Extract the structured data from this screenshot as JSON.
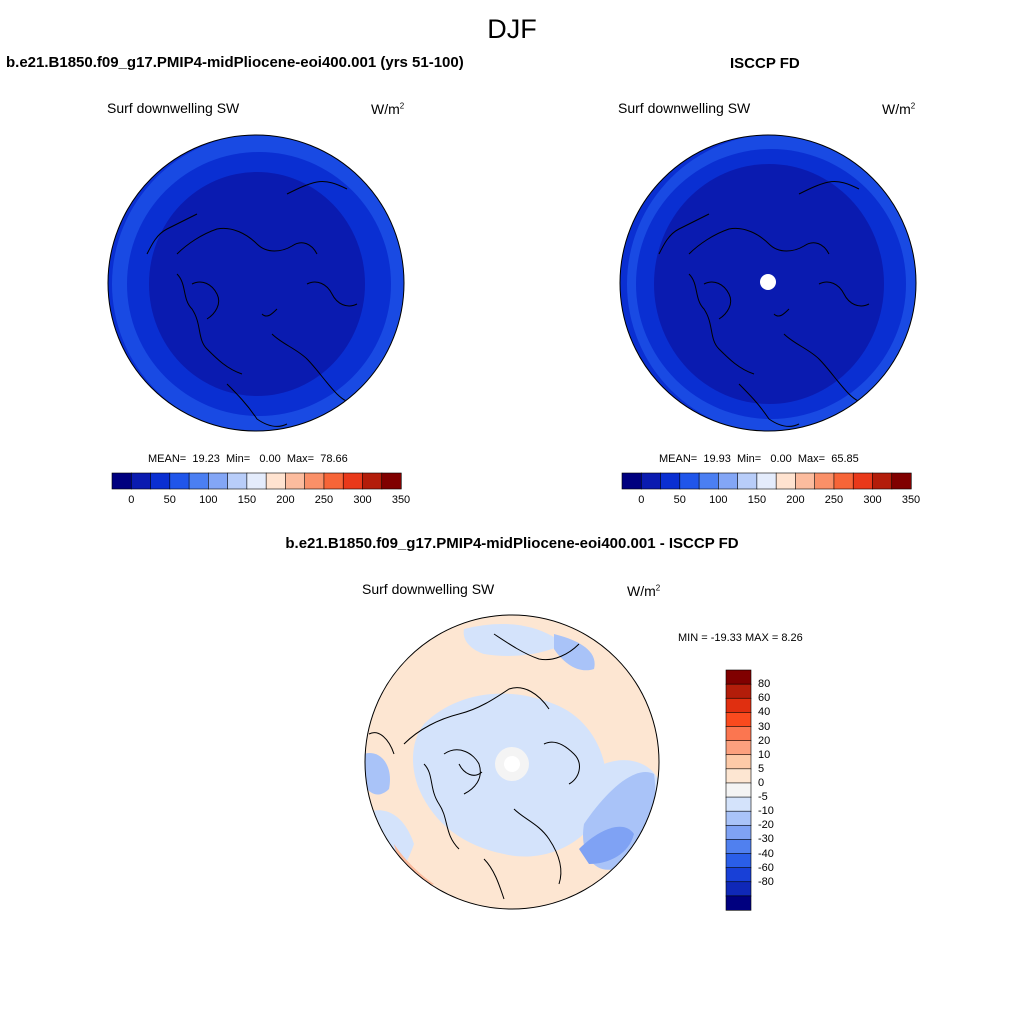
{
  "season": "DJF",
  "panels": [
    {
      "title": "b.e21.B1850.f09_g17.PMIP4-midPliocene-eoi400.001 (yrs 51-100)",
      "variable": "Surf downwelling SW",
      "units_base": "W/m",
      "units_exp": "2",
      "stats": {
        "mean_label": "MEAN=",
        "mean": "19.23",
        "min_label": "Min=",
        "min": "0.00",
        "max_label": "Max=",
        "max": "78.66"
      }
    },
    {
      "title": "ISCCP FD",
      "variable": "Surf downwelling SW",
      "units_base": "W/m",
      "units_exp": "2",
      "stats": {
        "mean_label": "MEAN=",
        "mean": "19.93",
        "min_label": "Min=",
        "min": "0.00",
        "max_label": "Max=",
        "max": "65.85"
      }
    },
    {
      "title": "b.e21.B1850.f09_g17.PMIP4-midPliocene-eoi400.001 - ISCCP FD",
      "variable": "Surf downwelling SW",
      "units_base": "W/m",
      "units_exp": "2",
      "minmax_text": "MIN = -19.33 MAX =   8.26"
    }
  ],
  "colorbar_top": {
    "colors": [
      "#00007f",
      "#0a1bb0",
      "#0a2fd2",
      "#2056ea",
      "#4b7ff2",
      "#83a6f6",
      "#b8cdf9",
      "#e4ecfc",
      "#ffe3d0",
      "#fcbc9e",
      "#fa9068",
      "#f76538",
      "#e9391a",
      "#b31d0a",
      "#800000"
    ],
    "tick_labels": [
      "0",
      "50",
      "100",
      "150",
      "200",
      "250",
      "300",
      "350"
    ]
  },
  "colorbar_diff": {
    "colors": [
      "#800000",
      "#b31d0a",
      "#e02f10",
      "#fa4a1e",
      "#fb7650",
      "#fca07e",
      "#fdcaa8",
      "#fde6d2",
      "#f4f4f4",
      "#d4e3fb",
      "#a9c3f8",
      "#7fa2f4",
      "#5080ef",
      "#2a5ee8",
      "#1840d7",
      "#0f28b8",
      "#00007f"
    ],
    "tick_labels": [
      "80",
      "60",
      "40",
      "30",
      "20",
      "10",
      "5",
      "0",
      "-5",
      "-10",
      "-20",
      "-30",
      "-40",
      "-60",
      "-80"
    ]
  },
  "maps": {
    "land_outline": "#000000",
    "missing_value_color": "#ffffff"
  }
}
